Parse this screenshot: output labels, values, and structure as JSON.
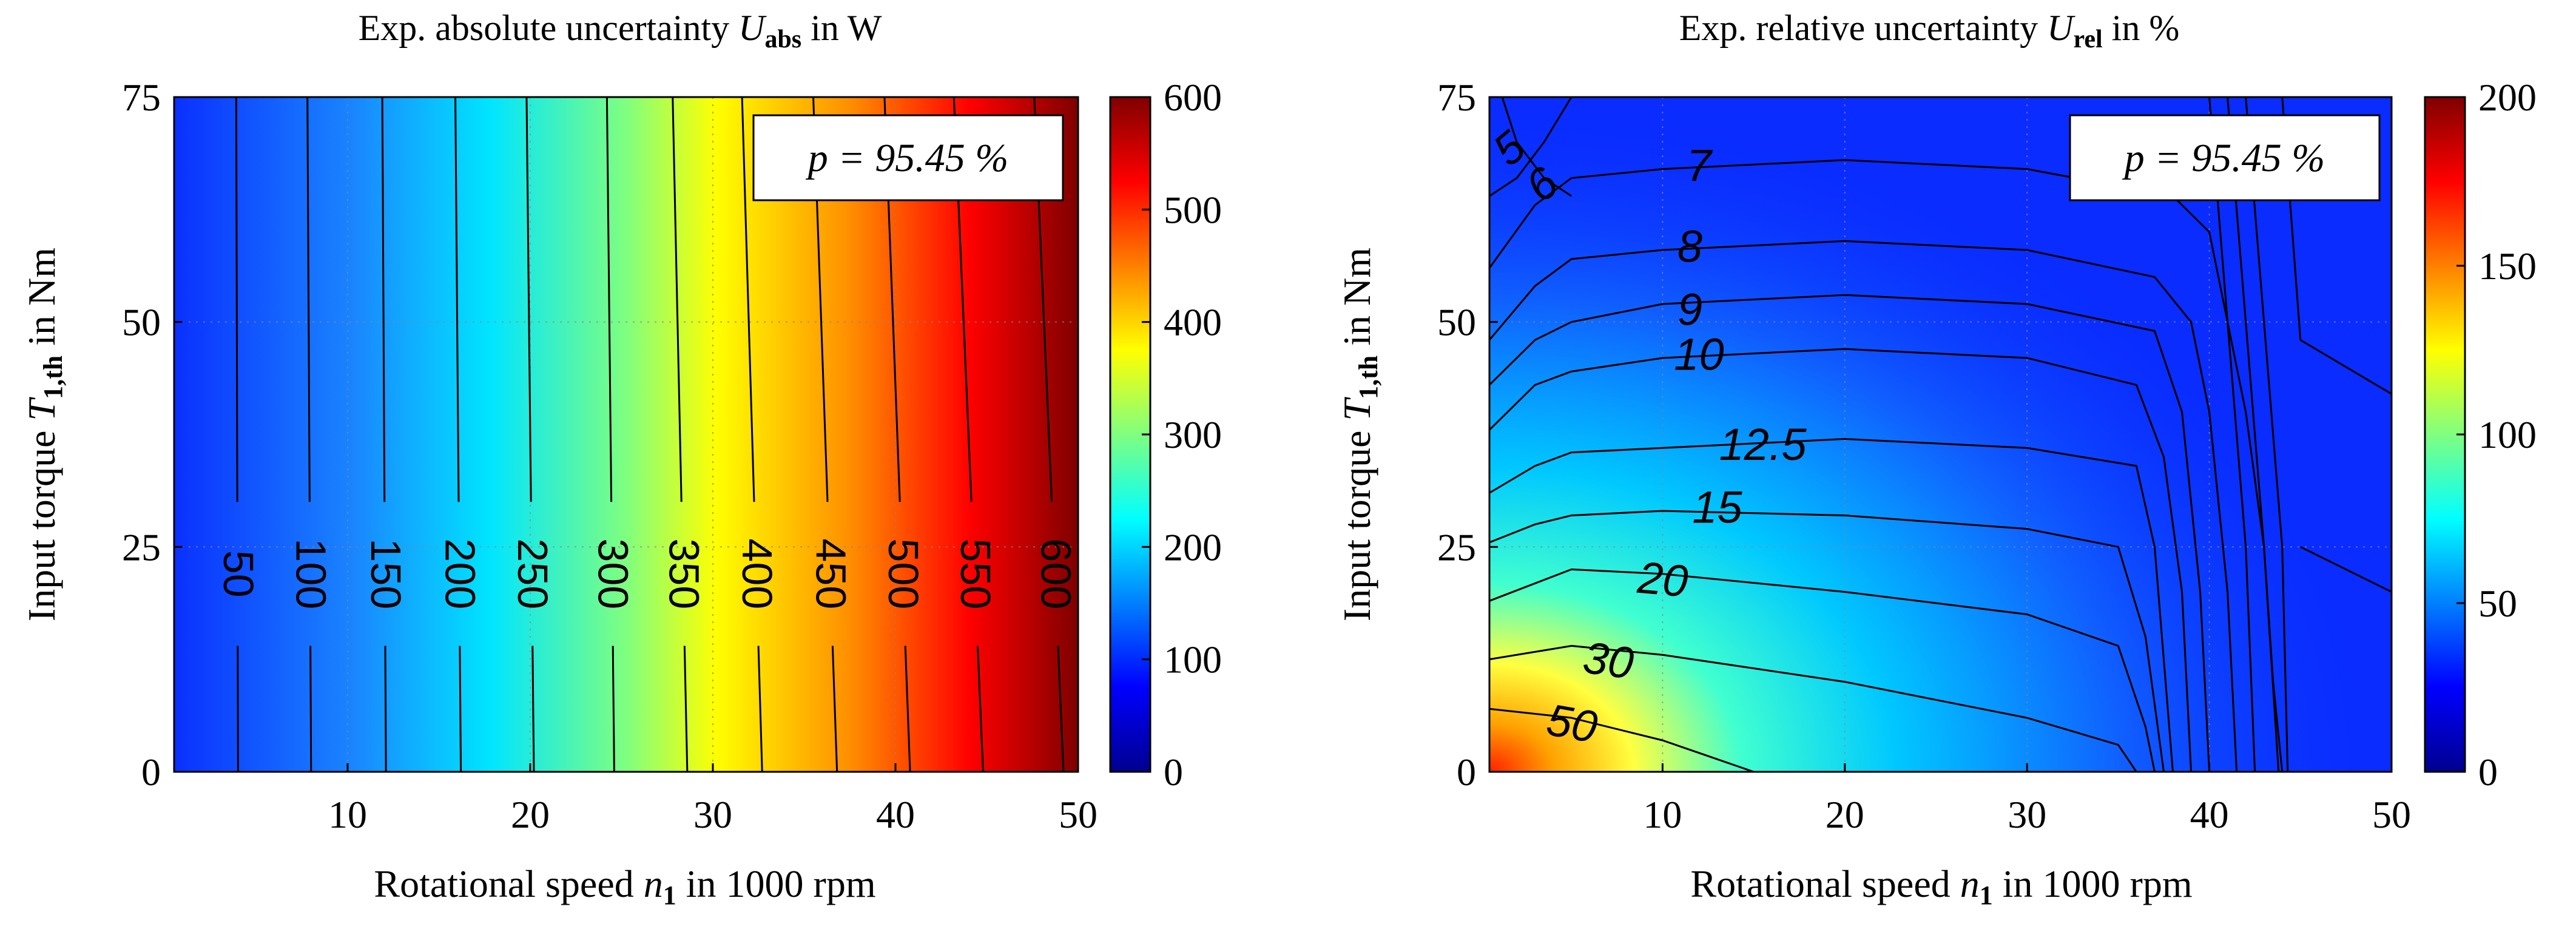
{
  "chart_data": [
    {
      "type": "heatmap",
      "subtype": "filled-contour",
      "title_prefix": "Exp. absolute uncertainty ",
      "title_symbol": "U",
      "title_subscript": "abs",
      "title_suffix": " in W",
      "xlabel_prefix": "Rotational speed ",
      "xlabel_symbol": "n",
      "xlabel_subscript": "1",
      "xlabel_suffix": " in 1000 rpm",
      "ylabel_prefix": "Input torque ",
      "ylabel_symbol": "T",
      "ylabel_subscript": "1,th",
      "ylabel_suffix": " in Nm",
      "xlim": [
        0.5,
        50
      ],
      "ylim": [
        0,
        75
      ],
      "xticks": [
        10,
        20,
        30,
        40,
        50
      ],
      "yticks": [
        0,
        25,
        50,
        75
      ],
      "grid": true,
      "annotation": "p = 95.45 %",
      "annotation_position": "top-right",
      "colorbar": {
        "min": 0,
        "max": 600,
        "ticks": [
          0,
          100,
          200,
          300,
          400,
          500,
          600
        ]
      },
      "contour_levels": [
        50,
        100,
        150,
        200,
        250,
        300,
        350,
        400,
        450,
        500,
        550,
        600
      ],
      "contour_x_at_bottom": [
        4,
        8,
        12.1,
        16.2,
        20.2,
        24.6,
        28.6,
        32.7,
        36.8,
        40.8,
        44.8,
        49.2
      ],
      "contour_x_at_top": [
        3.9,
        7.8,
        11.9,
        15.9,
        19.8,
        24.2,
        27.8,
        31.6,
        35.5,
        39.4,
        43.2,
        47.6
      ]
    },
    {
      "type": "heatmap",
      "subtype": "filled-contour",
      "title_prefix": "Exp. relative uncertainty ",
      "title_symbol": "U",
      "title_subscript": "rel",
      "title_suffix": " in %",
      "xlabel_prefix": "Rotational speed ",
      "xlabel_symbol": "n",
      "xlabel_subscript": "1",
      "xlabel_suffix": " in 1000 rpm",
      "ylabel_prefix": "Input torque ",
      "ylabel_symbol": "T",
      "ylabel_subscript": "1,th",
      "ylabel_suffix": " in Nm",
      "xlim": [
        0.5,
        50
      ],
      "ylim": [
        0,
        75
      ],
      "xticks": [
        10,
        20,
        30,
        40,
        50
      ],
      "yticks": [
        0,
        25,
        50,
        75
      ],
      "grid": true,
      "annotation": "p = 95.45 %",
      "annotation_position": "top-right",
      "colorbar": {
        "min": 0,
        "max": 200,
        "ticks": [
          0,
          50,
          100,
          150,
          200
        ]
      },
      "contour_labels": [
        "5",
        "6",
        "7",
        "8",
        "9",
        "10",
        "12.5",
        "15",
        "20",
        "30",
        "50"
      ],
      "contours": [
        {
          "level": 5,
          "points": [
            [
              1.2,
              75
            ],
            [
              2,
              70
            ],
            [
              3.5,
              66
            ],
            [
              5,
              64
            ]
          ]
        },
        {
          "level": 6,
          "points": [
            [
              0.5,
              64
            ],
            [
              2,
              66
            ],
            [
              3.5,
              70
            ],
            [
              5,
              75
            ]
          ]
        },
        {
          "level": 7,
          "points": [
            [
              0.5,
              56
            ],
            [
              3,
              63
            ],
            [
              5,
              66
            ],
            [
              10,
              67
            ],
            [
              20,
              68
            ],
            [
              30,
              67
            ],
            [
              38,
              64
            ],
            [
              40,
              60
            ],
            [
              41,
              50
            ],
            [
              42,
              40
            ],
            [
              43,
              25
            ],
            [
              43.5,
              10
            ],
            [
              44,
              0
            ]
          ]
        },
        {
          "level": 8,
          "points": [
            [
              0.5,
              48
            ],
            [
              3,
              54
            ],
            [
              5,
              57
            ],
            [
              10,
              58
            ],
            [
              20,
              59
            ],
            [
              30,
              58
            ],
            [
              37,
              55
            ],
            [
              39,
              50
            ],
            [
              40,
              40
            ],
            [
              41,
              20
            ],
            [
              41.5,
              0
            ]
          ]
        },
        {
          "level": 9,
          "points": [
            [
              0.5,
              43
            ],
            [
              3,
              48
            ],
            [
              5,
              50
            ],
            [
              10,
              52
            ],
            [
              20,
              53
            ],
            [
              30,
              52
            ],
            [
              37,
              49
            ],
            [
              38.5,
              40
            ],
            [
              39.5,
              20
            ],
            [
              40,
              0
            ]
          ]
        },
        {
          "level": 10,
          "points": [
            [
              0.5,
              38
            ],
            [
              3,
              43
            ],
            [
              5,
              44.5
            ],
            [
              10,
              46
            ],
            [
              20,
              47
            ],
            [
              30,
              46
            ],
            [
              36,
              43
            ],
            [
              37.5,
              35
            ],
            [
              38.5,
              20
            ],
            [
              39,
              0
            ]
          ]
        },
        {
          "level": 12.5,
          "points": [
            [
              0.5,
              31
            ],
            [
              3,
              34
            ],
            [
              5,
              35.5
            ],
            [
              10,
              36
            ],
            [
              20,
              37
            ],
            [
              30,
              36
            ],
            [
              36,
              34
            ],
            [
              37,
              25
            ],
            [
              38,
              0
            ]
          ]
        },
        {
          "level": 15,
          "points": [
            [
              0.5,
              25.5
            ],
            [
              3,
              27.5
            ],
            [
              5,
              28.5
            ],
            [
              10,
              29
            ],
            [
              20,
              28.5
            ],
            [
              30,
              27
            ],
            [
              35,
              25
            ],
            [
              36.5,
              15
            ],
            [
              37.5,
              0
            ]
          ]
        },
        {
          "level": 20,
          "points": [
            [
              0.5,
              19
            ],
            [
              5,
              22.5
            ],
            [
              10,
              22
            ],
            [
              20,
              20
            ],
            [
              30,
              17.5
            ],
            [
              35,
              14
            ],
            [
              36.5,
              5
            ],
            [
              37,
              0
            ]
          ]
        },
        {
          "level": 30,
          "points": [
            [
              0.5,
              12.5
            ],
            [
              5,
              14
            ],
            [
              10,
              13
            ],
            [
              20,
              10
            ],
            [
              30,
              6
            ],
            [
              35,
              3
            ],
            [
              36,
              0
            ]
          ]
        },
        {
          "level": 50,
          "points": [
            [
              0.5,
              7
            ],
            [
              5,
              6
            ],
            [
              10,
              3.5
            ],
            [
              15,
              0
            ]
          ]
        }
      ],
      "vertical_contours": [
        [
          [
            40,
            75
          ],
          [
            41,
            50
          ],
          [
            42,
            25
          ],
          [
            42.5,
            0
          ]
        ],
        [
          [
            41,
            75
          ],
          [
            42,
            50
          ],
          [
            43,
            25
          ],
          [
            43.8,
            0
          ]
        ],
        [
          [
            42,
            75
          ],
          [
            43,
            50
          ],
          [
            44,
            25
          ],
          [
            44.3,
            0
          ]
        ],
        [
          [
            44,
            75
          ],
          [
            45,
            48
          ],
          [
            50,
            42
          ]
        ],
        [
          [
            45,
            25
          ],
          [
            50,
            20
          ]
        ]
      ]
    }
  ]
}
